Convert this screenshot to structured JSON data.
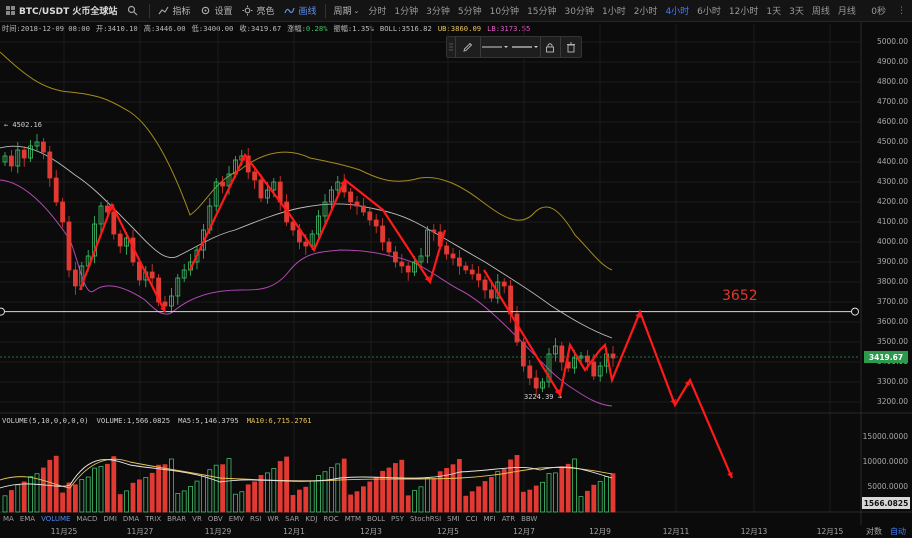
{
  "toolbar": {
    "symbol": "BTC/USDT 火币全球站",
    "indicator_label": "指标",
    "settings_label": "设置",
    "theme_label": "亮色",
    "draw_label": "画线",
    "period_label": "周期",
    "periods": [
      "分时",
      "1分钟",
      "3分钟",
      "5分钟",
      "10分钟",
      "15分钟",
      "30分钟",
      "1小时",
      "2小时",
      "4小时",
      "6小时",
      "12小时",
      "1天",
      "3天",
      "周线",
      "月线"
    ],
    "active_period": "4小时",
    "right_text": "0秒"
  },
  "info": {
    "time": "时间:2018-12-09 08:00",
    "open": "开:3410.10",
    "high": "高:3446.00",
    "low": "低:3400.00",
    "close": "收:3419.67",
    "change_label": "涨幅:",
    "change_value": "0.28%",
    "amplitude": "振幅:1.35%",
    "boll": "BOLL:3516.82",
    "ub": "UB:3860.09",
    "lb": "LB:3173.55"
  },
  "price_axis": [
    "5000.00",
    "4900.00",
    "4800.00",
    "4700.00",
    "4600.00",
    "4500.00",
    "4400.00",
    "4300.00",
    "4200.00",
    "4100.00",
    "4000.00",
    "3900.00",
    "3800.00",
    "3700.00",
    "3600.00",
    "3500.00",
    "3400.00",
    "3300.00",
    "3200.00"
  ],
  "current_price": "3419.67",
  "volume_axis": [
    "15000.0000",
    "10000.0000",
    "5000.0000"
  ],
  "current_volume": "1566.0825",
  "volume_legend": {
    "name": "VOLUME(5,10,0,0,0,0)",
    "volume": "VOLUME:1,566.0825",
    "ma5": "MA5:5,146.3795",
    "ma10": "MA10:6,715.2761"
  },
  "indicator_tabs": [
    "MA",
    "EMA",
    "VOLUME",
    "MACD",
    "DMI",
    "DMA",
    "TRIX",
    "BRAR",
    "VR",
    "OBV",
    "EMV",
    "RSI",
    "WR",
    "SAR",
    "KDJ",
    "ROC",
    "MTM",
    "BOLL",
    "PSY",
    "StochRSI",
    "SMI",
    "CCI",
    "MFI",
    "ATR",
    "BBW"
  ],
  "active_indicator": "VOLUME",
  "dates": [
    "11月25",
    "11月27",
    "11月29",
    "12月1",
    "12月3",
    "12月5",
    "12月7",
    "12月9",
    "12月11",
    "12月13",
    "12月15"
  ],
  "corner": {
    "log_label": "对数",
    "auto_label": "自动"
  },
  "annotations": {
    "target": "3652",
    "low": "3224.39 →",
    "high": "← 4502.16"
  },
  "colors": {
    "up": "#3fc16a",
    "down": "#e23a33",
    "ub": "#b59b2a",
    "lb": "#c04fbf",
    "mid": "#cfcfcf",
    "arrow": "#ff1a1a"
  }
}
